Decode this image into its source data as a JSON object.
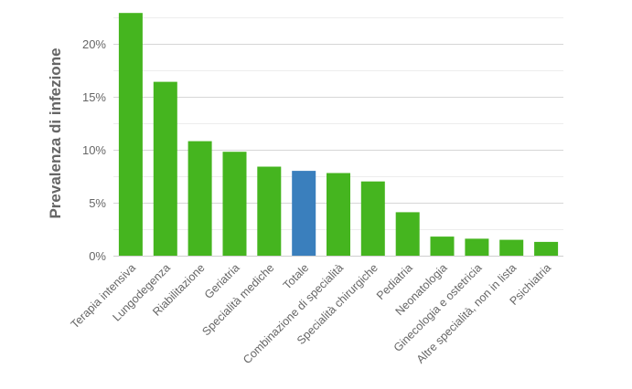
{
  "chart_data": {
    "type": "bar",
    "title": "",
    "xlabel": "",
    "ylabel": "Prevalenza di infezione",
    "ylim": [
      0,
      23
    ],
    "yticks": [
      0,
      5,
      10,
      15,
      20
    ],
    "ytick_labels": [
      "0%",
      "5%",
      "10%",
      "15%",
      "20%"
    ],
    "grid": true,
    "legend": "none",
    "categories": [
      "Terapia intensiva",
      "Lungodegenza",
      "Riabilitazione",
      "Geriatria",
      "Specialità mediche",
      "Totale",
      "Combinazione di specialità",
      "Specialità chirurgiche",
      "Pediatria",
      "Neonatologia",
      "Ginecologia e ostetricia",
      "Altre specialità, non in lista",
      "Psichiatria"
    ],
    "values": [
      22.9,
      16.4,
      10.8,
      9.8,
      8.4,
      8.0,
      7.8,
      7.0,
      4.1,
      1.8,
      1.6,
      1.5,
      1.3
    ],
    "colors": {
      "default": "#45b51f",
      "highlight": "#3a7fbd"
    },
    "highlight_category": "Totale"
  }
}
